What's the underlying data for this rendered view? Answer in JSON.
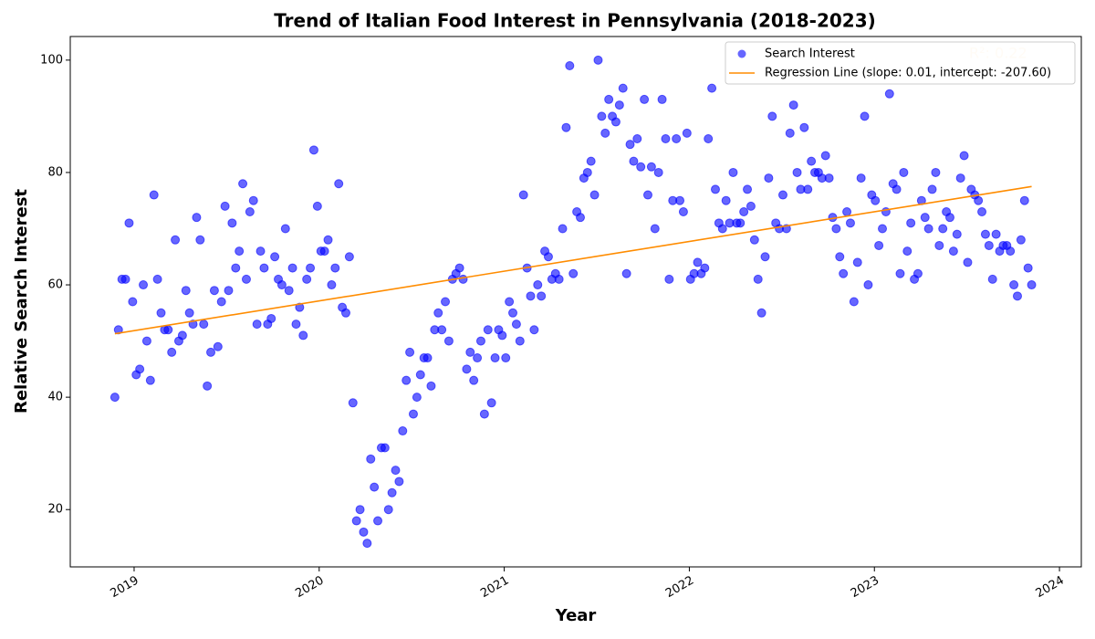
{
  "chart_data": {
    "type": "scatter",
    "title": "Trend of Italian Food Interest in Pennsylvania (2018-2023)",
    "x_label": "Year",
    "y_label": "Relative Search Interest",
    "annotation": "R²: 0.22",
    "xlim": [
      2018.655,
      2024.118
    ],
    "xticks": [
      2019,
      2020,
      2021,
      2022,
      2023,
      2024
    ],
    "ylim": [
      9.8,
      104.2
    ],
    "yticks": [
      20,
      40,
      60,
      80,
      100
    ],
    "grid": false,
    "legend": "upper right",
    "series": [
      {
        "name": "Search Interest",
        "type": "scatter",
        "color": "#0000ff",
        "x": [
          2018.896,
          2018.9152,
          2018.9344,
          2018.9536,
          2018.9728,
          2018.992,
          2019.0112,
          2019.0304,
          2019.0496,
          2019.0688,
          2019.088,
          2019.1072,
          2019.1264,
          2019.1456,
          2019.1648,
          2019.184,
          2019.2032,
          2019.2224,
          2019.2416,
          2019.2608,
          2019.28,
          2019.2992,
          2019.3184,
          2019.3376,
          2019.3568,
          2019.376,
          2019.3952,
          2019.4144,
          2019.4336,
          2019.4528,
          2019.472,
          2019.4912,
          2019.5104,
          2019.5296,
          2019.5488,
          2019.568,
          2019.5872,
          2019.6064,
          2019.6256,
          2019.6448,
          2019.664,
          2019.6832,
          2019.7024,
          2019.7216,
          2019.7408,
          2019.76,
          2019.7792,
          2019.7984,
          2019.8176,
          2019.8368,
          2019.856,
          2019.8752,
          2019.8944,
          2019.9136,
          2019.9328,
          2019.952,
          2019.9712,
          2019.9904,
          2020.0096,
          2020.0288,
          2020.048,
          2020.0672,
          2020.0864,
          2020.1056,
          2020.1248,
          2020.144,
          2020.1632,
          2020.1824,
          2020.2016,
          2020.2208,
          2020.24,
          2020.2592,
          2020.2784,
          2020.2976,
          2020.3168,
          2020.336,
          2020.3552,
          2020.3744,
          2020.3936,
          2020.4128,
          2020.432,
          2020.4512,
          2020.4704,
          2020.4896,
          2020.5088,
          2020.528,
          2020.5472,
          2020.5664,
          2020.5856,
          2020.6048,
          2020.624,
          2020.6432,
          2020.6624,
          2020.6816,
          2020.7008,
          2020.72,
          2020.7392,
          2020.7584,
          2020.7776,
          2020.7968,
          2020.816,
          2020.8352,
          2020.8544,
          2020.8736,
          2020.8928,
          2020.912,
          2020.9312,
          2020.9504,
          2020.9696,
          2020.9888,
          2021.008,
          2021.0272,
          2021.0464,
          2021.0656,
          2021.0848,
          2021.104,
          2021.1232,
          2021.1424,
          2021.1616,
          2021.1808,
          2021.2,
          2021.2192,
          2021.2384,
          2021.2576,
          2021.2768,
          2021.296,
          2021.3152,
          2021.3344,
          2021.3536,
          2021.3728,
          2021.392,
          2021.4112,
          2021.4304,
          2021.4496,
          2021.4688,
          2021.488,
          2021.5072,
          2021.5264,
          2021.5456,
          2021.5648,
          2021.584,
          2021.6032,
          2021.6224,
          2021.6416,
          2021.6608,
          2021.68,
          2021.6992,
          2021.7184,
          2021.7376,
          2021.7568,
          2021.776,
          2021.7952,
          2021.8144,
          2021.8336,
          2021.8528,
          2021.872,
          2021.8912,
          2021.9104,
          2021.9296,
          2021.9488,
          2021.968,
          2021.9872,
          2022.0064,
          2022.0256,
          2022.0448,
          2022.064,
          2022.0832,
          2022.1024,
          2022.1216,
          2022.1408,
          2022.16,
          2022.1792,
          2022.1984,
          2022.2176,
          2022.2368,
          2022.256,
          2022.2752,
          2022.2944,
          2022.3136,
          2022.3328,
          2022.352,
          2022.3712,
          2022.3904,
          2022.4096,
          2022.4288,
          2022.448,
          2022.4672,
          2022.4864,
          2022.5056,
          2022.5248,
          2022.544,
          2022.5632,
          2022.5824,
          2022.6016,
          2022.6208,
          2022.64,
          2022.6592,
          2022.6784,
          2022.6976,
          2022.7168,
          2022.736,
          2022.7552,
          2022.7744,
          2022.7936,
          2022.8128,
          2022.832,
          2022.8512,
          2022.8704,
          2022.8896,
          2022.9088,
          2022.928,
          2022.9472,
          2022.9664,
          2022.9856,
          2023.0048,
          2023.024,
          2023.0432,
          2023.0624,
          2023.0816,
          2023.1008,
          2023.12,
          2023.1392,
          2023.1584,
          2023.1776,
          2023.1968,
          2023.216,
          2023.2352,
          2023.2544,
          2023.2736,
          2023.2928,
          2023.312,
          2023.3312,
          2023.3504,
          2023.3696,
          2023.3888,
          2023.408,
          2023.4272,
          2023.4464,
          2023.4656,
          2023.4848,
          2023.504,
          2023.5232,
          2023.5424,
          2023.5616,
          2023.5808,
          2023.6,
          2023.6192,
          2023.6384,
          2023.6576,
          2023.6768,
          2023.696,
          2023.7152,
          2023.7344,
          2023.7536,
          2023.7728,
          2023.792,
          2023.8112,
          2023.8304,
          2023.8496
        ],
        "values": [
          40,
          52,
          61,
          61,
          71,
          57,
          44,
          45,
          60,
          50,
          43,
          76,
          61,
          55,
          52,
          52,
          48,
          68,
          50,
          51,
          59,
          55,
          53,
          72,
          68,
          53,
          42,
          48,
          59,
          49,
          57,
          74,
          59,
          71,
          63,
          66,
          78,
          61,
          73,
          75,
          53,
          66,
          63,
          53,
          54,
          65,
          61,
          60,
          70,
          59,
          63,
          53,
          56,
          51,
          61,
          63,
          84,
          74,
          66,
          66,
          68,
          60,
          63,
          78,
          56,
          55,
          65,
          39,
          18,
          20,
          16,
          14,
          29,
          24,
          18,
          31,
          31,
          20,
          23,
          27,
          25,
          34,
          43,
          48,
          37,
          40,
          44,
          47,
          47,
          42,
          52,
          55,
          52,
          57,
          50,
          61,
          62,
          63,
          61,
          45,
          48,
          43,
          47,
          50,
          37,
          52,
          39,
          47,
          52,
          51,
          47,
          57,
          55,
          53,
          50,
          76,
          63,
          58,
          52,
          60,
          58,
          66,
          65,
          61,
          62,
          61,
          70,
          88,
          99,
          62,
          73,
          72,
          79,
          80,
          82,
          76,
          100,
          90,
          87,
          93,
          90,
          89,
          92,
          95,
          62,
          85,
          82,
          86,
          81,
          93,
          76,
          81,
          70,
          80,
          93,
          86,
          61,
          75,
          86,
          75,
          73,
          87,
          61,
          62,
          64,
          62,
          63,
          86,
          95,
          77,
          71,
          70,
          75,
          71,
          80,
          71,
          71,
          73,
          77,
          74,
          68,
          61,
          55,
          65,
          79,
          90,
          71,
          70,
          76,
          70,
          87,
          92,
          80,
          77,
          88,
          77,
          82,
          80,
          80,
          79,
          83,
          79,
          72,
          70,
          65,
          62,
          73,
          71,
          57,
          64,
          79,
          90,
          60,
          76,
          75,
          67,
          70,
          73,
          94,
          78,
          77,
          62,
          80,
          66,
          71,
          61,
          62,
          75,
          72,
          70,
          77,
          80,
          67,
          70,
          73,
          72,
          66,
          69,
          79,
          83,
          64,
          77,
          76,
          75,
          73,
          69,
          67,
          61,
          69,
          66,
          67,
          67,
          66,
          60,
          58,
          68,
          75,
          63,
          60
        ]
      },
      {
        "name": "Regression Line (slope: 0.01, intercept: -207.60)",
        "type": "line",
        "color": "#ff8c00",
        "x": [
          2018.896,
          2023.8496
        ],
        "values": [
          51.3,
          77.5
        ]
      }
    ]
  }
}
